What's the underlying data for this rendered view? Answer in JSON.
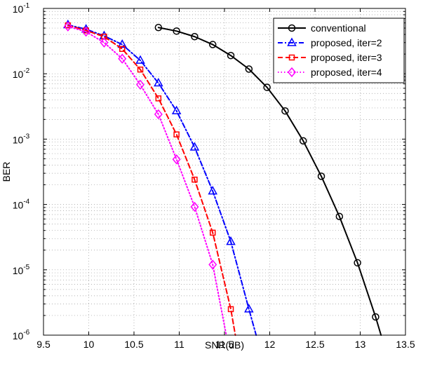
{
  "chart_data": {
    "type": "line",
    "xlabel": "SNR(dB)",
    "ylabel": "BER",
    "xlim": [
      9.5,
      13.5
    ],
    "ylim": [
      1e-06,
      0.1
    ],
    "y_scale": "log",
    "grid": true,
    "legend_position": "top-right",
    "x_ticks": [
      9.5,
      10,
      10.5,
      11,
      11.5,
      12,
      12.5,
      13,
      13.5
    ],
    "x_tick_labels": [
      "9.5",
      "10",
      "10.5",
      "11",
      "11.5",
      "12",
      "12.5",
      "13",
      "13.5"
    ],
    "y_ticks": [
      1e-06,
      1e-05,
      0.0001,
      0.001,
      0.01,
      0.1
    ],
    "y_tick_exponents": [
      "-6",
      "-5",
      "-4",
      "-3",
      "-2",
      "-1"
    ],
    "y_tick_base": "10",
    "series": [
      {
        "name": "conventional",
        "color": "#000000",
        "line_style": "solid",
        "marker": "circle",
        "x": [
          10.77,
          10.97,
          11.17,
          11.37,
          11.57,
          11.77,
          11.97,
          12.17,
          12.37,
          12.57,
          12.77,
          12.97,
          13.17,
          13.23
        ],
        "y": [
          0.051,
          0.045,
          0.037,
          0.028,
          0.019,
          0.0118,
          0.0062,
          0.0027,
          0.00094,
          0.00027,
          6.55e-05,
          1.28e-05,
          1.9e-06,
          1e-06
        ]
      },
      {
        "name": "proposed, iter=2",
        "color": "#0000ff",
        "line_style": "dashdot",
        "marker": "triangle",
        "x": [
          9.77,
          9.97,
          10.17,
          10.37,
          10.57,
          10.77,
          10.97,
          11.17,
          11.37,
          11.57,
          11.77,
          11.85
        ],
        "y": [
          0.056,
          0.048,
          0.038,
          0.028,
          0.016,
          0.0072,
          0.0027,
          0.00075,
          0.00016,
          2.7e-05,
          2.5e-06,
          1e-06
        ]
      },
      {
        "name": "proposed, iter=3",
        "color": "#ff0000",
        "line_style": "dashed",
        "marker": "square",
        "x": [
          9.77,
          9.97,
          10.17,
          10.37,
          10.57,
          10.77,
          10.97,
          11.17,
          11.37,
          11.57,
          11.62
        ],
        "y": [
          0.055,
          0.046,
          0.037,
          0.024,
          0.0116,
          0.0042,
          0.00118,
          0.00024,
          3.7e-05,
          2.5e-06,
          1e-06
        ]
      },
      {
        "name": "proposed, iter=4",
        "color": "#ff00ff",
        "line_style": "dotted",
        "marker": "diamond",
        "x": [
          9.77,
          9.97,
          10.17,
          10.37,
          10.57,
          10.77,
          10.97,
          11.17,
          11.37,
          11.52
        ],
        "y": [
          0.053,
          0.044,
          0.03,
          0.017,
          0.0068,
          0.0024,
          0.00049,
          9.2e-05,
          1.2e-05,
          1e-06
        ]
      }
    ]
  }
}
